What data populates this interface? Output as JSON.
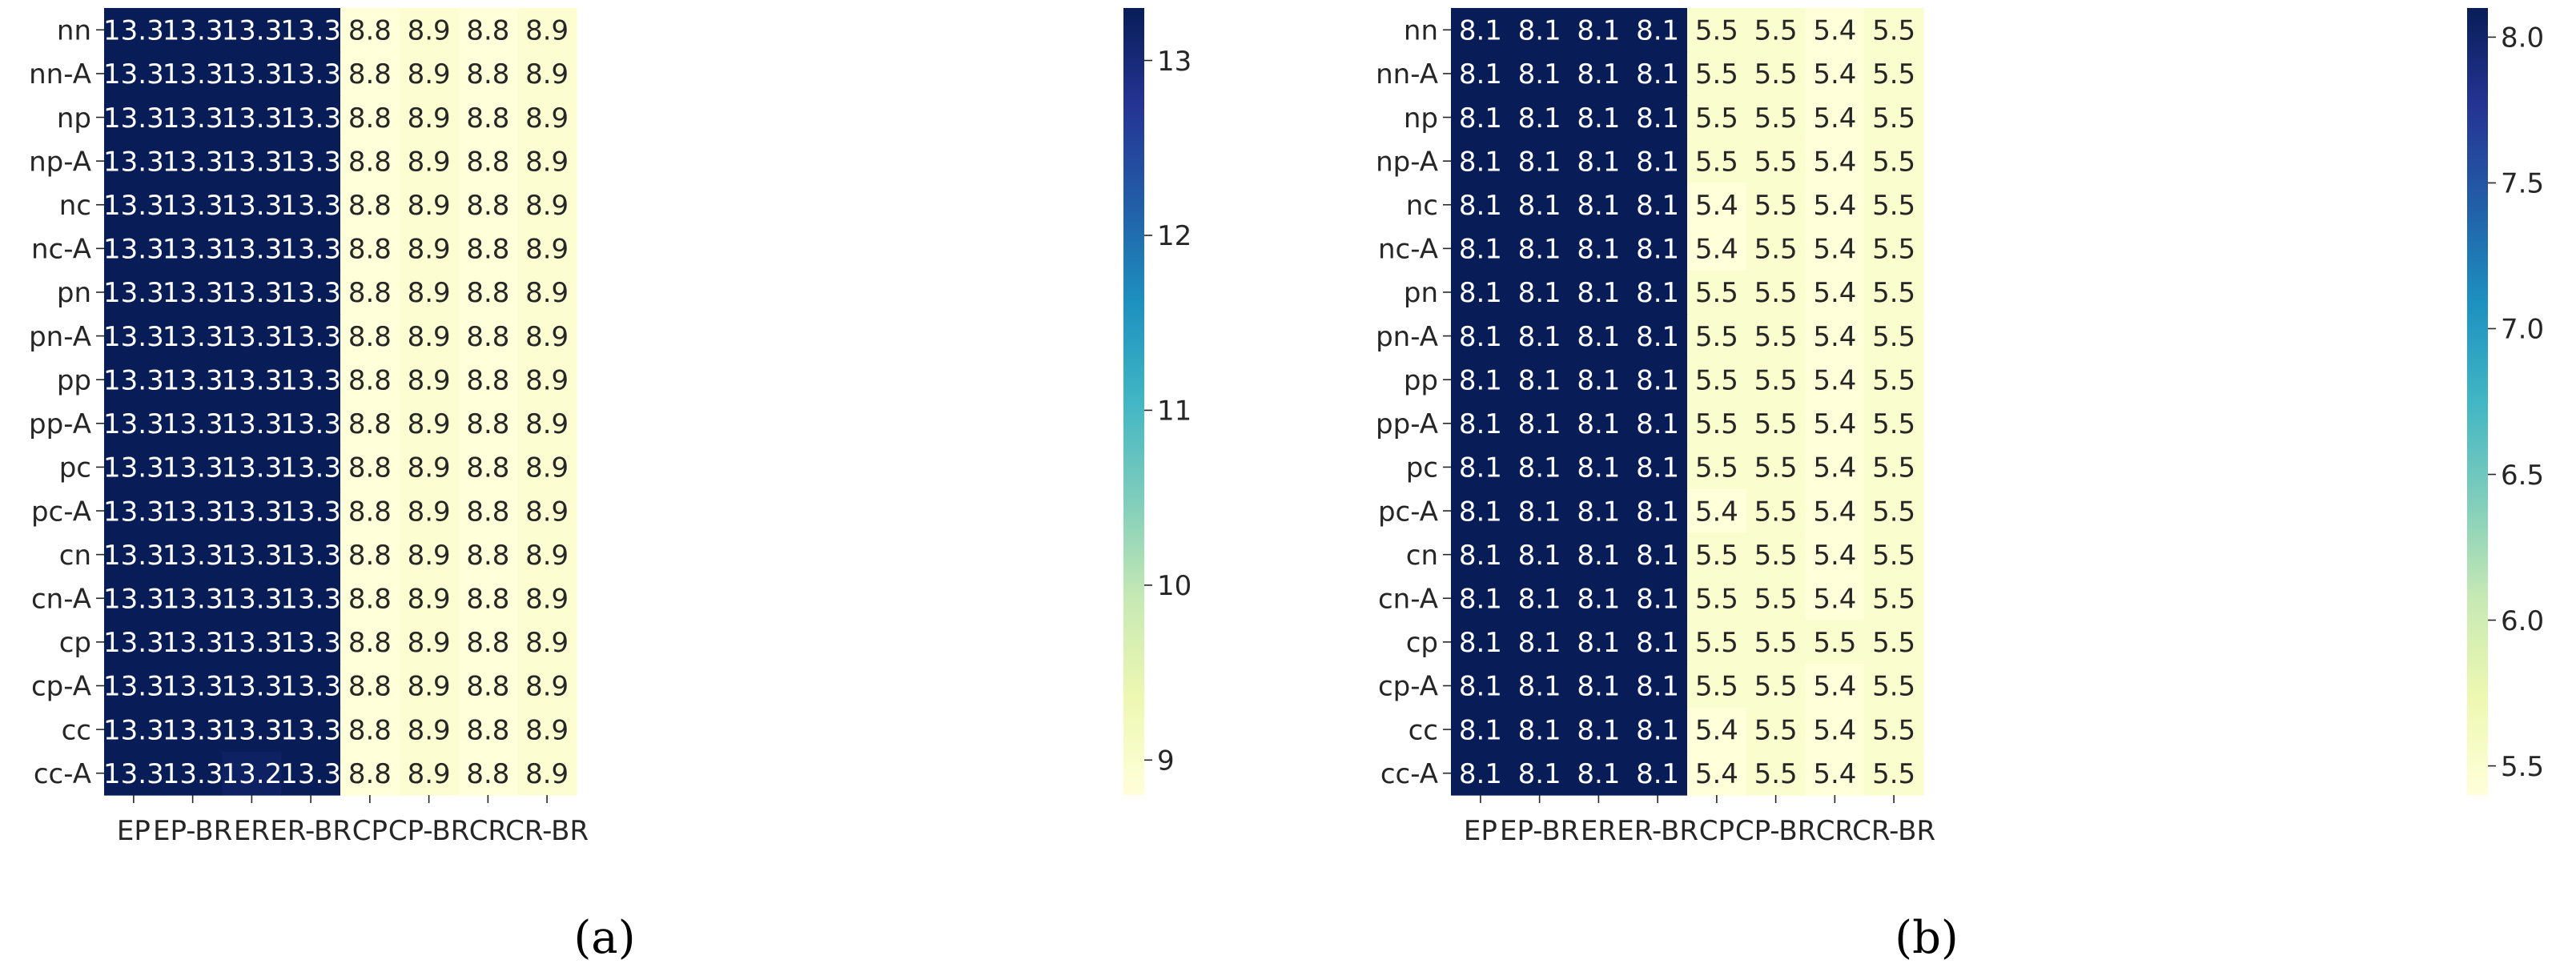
{
  "chart_data": [
    {
      "type": "heatmap",
      "caption": "(a)",
      "columns": [
        "EP",
        "EP-BR",
        "ER",
        "ER-BR",
        "CP",
        "CP-BR",
        "CR",
        "CR-BR"
      ],
      "rows": [
        "nn",
        "nn-A",
        "np",
        "np-A",
        "nc",
        "nc-A",
        "pn",
        "pn-A",
        "pp",
        "pp-A",
        "pc",
        "pc-A",
        "cn",
        "cn-A",
        "cp",
        "cp-A",
        "cc",
        "cc-A"
      ],
      "values": [
        [
          13.3,
          13.3,
          13.3,
          13.3,
          8.8,
          8.9,
          8.8,
          8.9
        ],
        [
          13.3,
          13.3,
          13.3,
          13.3,
          8.8,
          8.9,
          8.8,
          8.9
        ],
        [
          13.3,
          13.3,
          13.3,
          13.3,
          8.8,
          8.9,
          8.8,
          8.9
        ],
        [
          13.3,
          13.3,
          13.3,
          13.3,
          8.8,
          8.9,
          8.8,
          8.9
        ],
        [
          13.3,
          13.3,
          13.3,
          13.3,
          8.8,
          8.9,
          8.8,
          8.9
        ],
        [
          13.3,
          13.3,
          13.3,
          13.3,
          8.8,
          8.9,
          8.8,
          8.9
        ],
        [
          13.3,
          13.3,
          13.3,
          13.3,
          8.8,
          8.9,
          8.8,
          8.9
        ],
        [
          13.3,
          13.3,
          13.3,
          13.3,
          8.8,
          8.9,
          8.8,
          8.9
        ],
        [
          13.3,
          13.3,
          13.3,
          13.3,
          8.8,
          8.9,
          8.8,
          8.9
        ],
        [
          13.3,
          13.3,
          13.3,
          13.3,
          8.8,
          8.9,
          8.8,
          8.9
        ],
        [
          13.3,
          13.3,
          13.3,
          13.3,
          8.8,
          8.9,
          8.8,
          8.9
        ],
        [
          13.3,
          13.3,
          13.3,
          13.3,
          8.8,
          8.9,
          8.8,
          8.9
        ],
        [
          13.3,
          13.3,
          13.3,
          13.3,
          8.8,
          8.9,
          8.8,
          8.9
        ],
        [
          13.3,
          13.3,
          13.3,
          13.3,
          8.8,
          8.9,
          8.8,
          8.9
        ],
        [
          13.3,
          13.3,
          13.3,
          13.3,
          8.8,
          8.9,
          8.8,
          8.9
        ],
        [
          13.3,
          13.3,
          13.3,
          13.3,
          8.8,
          8.9,
          8.8,
          8.9
        ],
        [
          13.3,
          13.3,
          13.3,
          13.3,
          8.8,
          8.9,
          8.8,
          8.9
        ],
        [
          13.3,
          13.3,
          13.2,
          13.3,
          8.8,
          8.9,
          8.8,
          8.9
        ]
      ],
      "colorbar": {
        "vmin": 8.8,
        "vmax": 13.3,
        "ticks": [
          9,
          10,
          11,
          12,
          13
        ],
        "tick_labels": [
          "9",
          "10",
          "11",
          "12",
          "13"
        ]
      },
      "colormap": "YlGnBu"
    },
    {
      "type": "heatmap",
      "caption": "(b)",
      "columns": [
        "EP",
        "EP-BR",
        "ER",
        "ER-BR",
        "CP",
        "CP-BR",
        "CR",
        "CR-BR"
      ],
      "rows": [
        "nn",
        "nn-A",
        "np",
        "np-A",
        "nc",
        "nc-A",
        "pn",
        "pn-A",
        "pp",
        "pp-A",
        "pc",
        "pc-A",
        "cn",
        "cn-A",
        "cp",
        "cp-A",
        "cc",
        "cc-A"
      ],
      "values": [
        [
          8.1,
          8.1,
          8.1,
          8.1,
          5.5,
          5.5,
          5.4,
          5.5
        ],
        [
          8.1,
          8.1,
          8.1,
          8.1,
          5.5,
          5.5,
          5.4,
          5.5
        ],
        [
          8.1,
          8.1,
          8.1,
          8.1,
          5.5,
          5.5,
          5.4,
          5.5
        ],
        [
          8.1,
          8.1,
          8.1,
          8.1,
          5.5,
          5.5,
          5.4,
          5.5
        ],
        [
          8.1,
          8.1,
          8.1,
          8.1,
          5.4,
          5.5,
          5.4,
          5.5
        ],
        [
          8.1,
          8.1,
          8.1,
          8.1,
          5.4,
          5.5,
          5.4,
          5.5
        ],
        [
          8.1,
          8.1,
          8.1,
          8.1,
          5.5,
          5.5,
          5.4,
          5.5
        ],
        [
          8.1,
          8.1,
          8.1,
          8.1,
          5.5,
          5.5,
          5.4,
          5.5
        ],
        [
          8.1,
          8.1,
          8.1,
          8.1,
          5.5,
          5.5,
          5.4,
          5.5
        ],
        [
          8.1,
          8.1,
          8.1,
          8.1,
          5.5,
          5.5,
          5.4,
          5.5
        ],
        [
          8.1,
          8.1,
          8.1,
          8.1,
          5.5,
          5.5,
          5.4,
          5.5
        ],
        [
          8.1,
          8.1,
          8.1,
          8.1,
          5.4,
          5.5,
          5.4,
          5.5
        ],
        [
          8.1,
          8.1,
          8.1,
          8.1,
          5.5,
          5.5,
          5.4,
          5.5
        ],
        [
          8.1,
          8.1,
          8.1,
          8.1,
          5.5,
          5.5,
          5.4,
          5.5
        ],
        [
          8.1,
          8.1,
          8.1,
          8.1,
          5.5,
          5.5,
          5.5,
          5.5
        ],
        [
          8.1,
          8.1,
          8.1,
          8.1,
          5.5,
          5.5,
          5.4,
          5.5
        ],
        [
          8.1,
          8.1,
          8.1,
          8.1,
          5.4,
          5.5,
          5.4,
          5.5
        ],
        [
          8.1,
          8.1,
          8.1,
          8.1,
          5.4,
          5.5,
          5.4,
          5.5
        ]
      ],
      "colorbar": {
        "vmin": 5.4,
        "vmax": 8.1,
        "ticks": [
          5.5,
          6.0,
          6.5,
          7.0,
          7.5,
          8.0
        ],
        "tick_labels": [
          "5.5",
          "6.0",
          "6.5",
          "7.0",
          "7.5",
          "8.0"
        ]
      },
      "colormap": "YlGnBu"
    }
  ]
}
